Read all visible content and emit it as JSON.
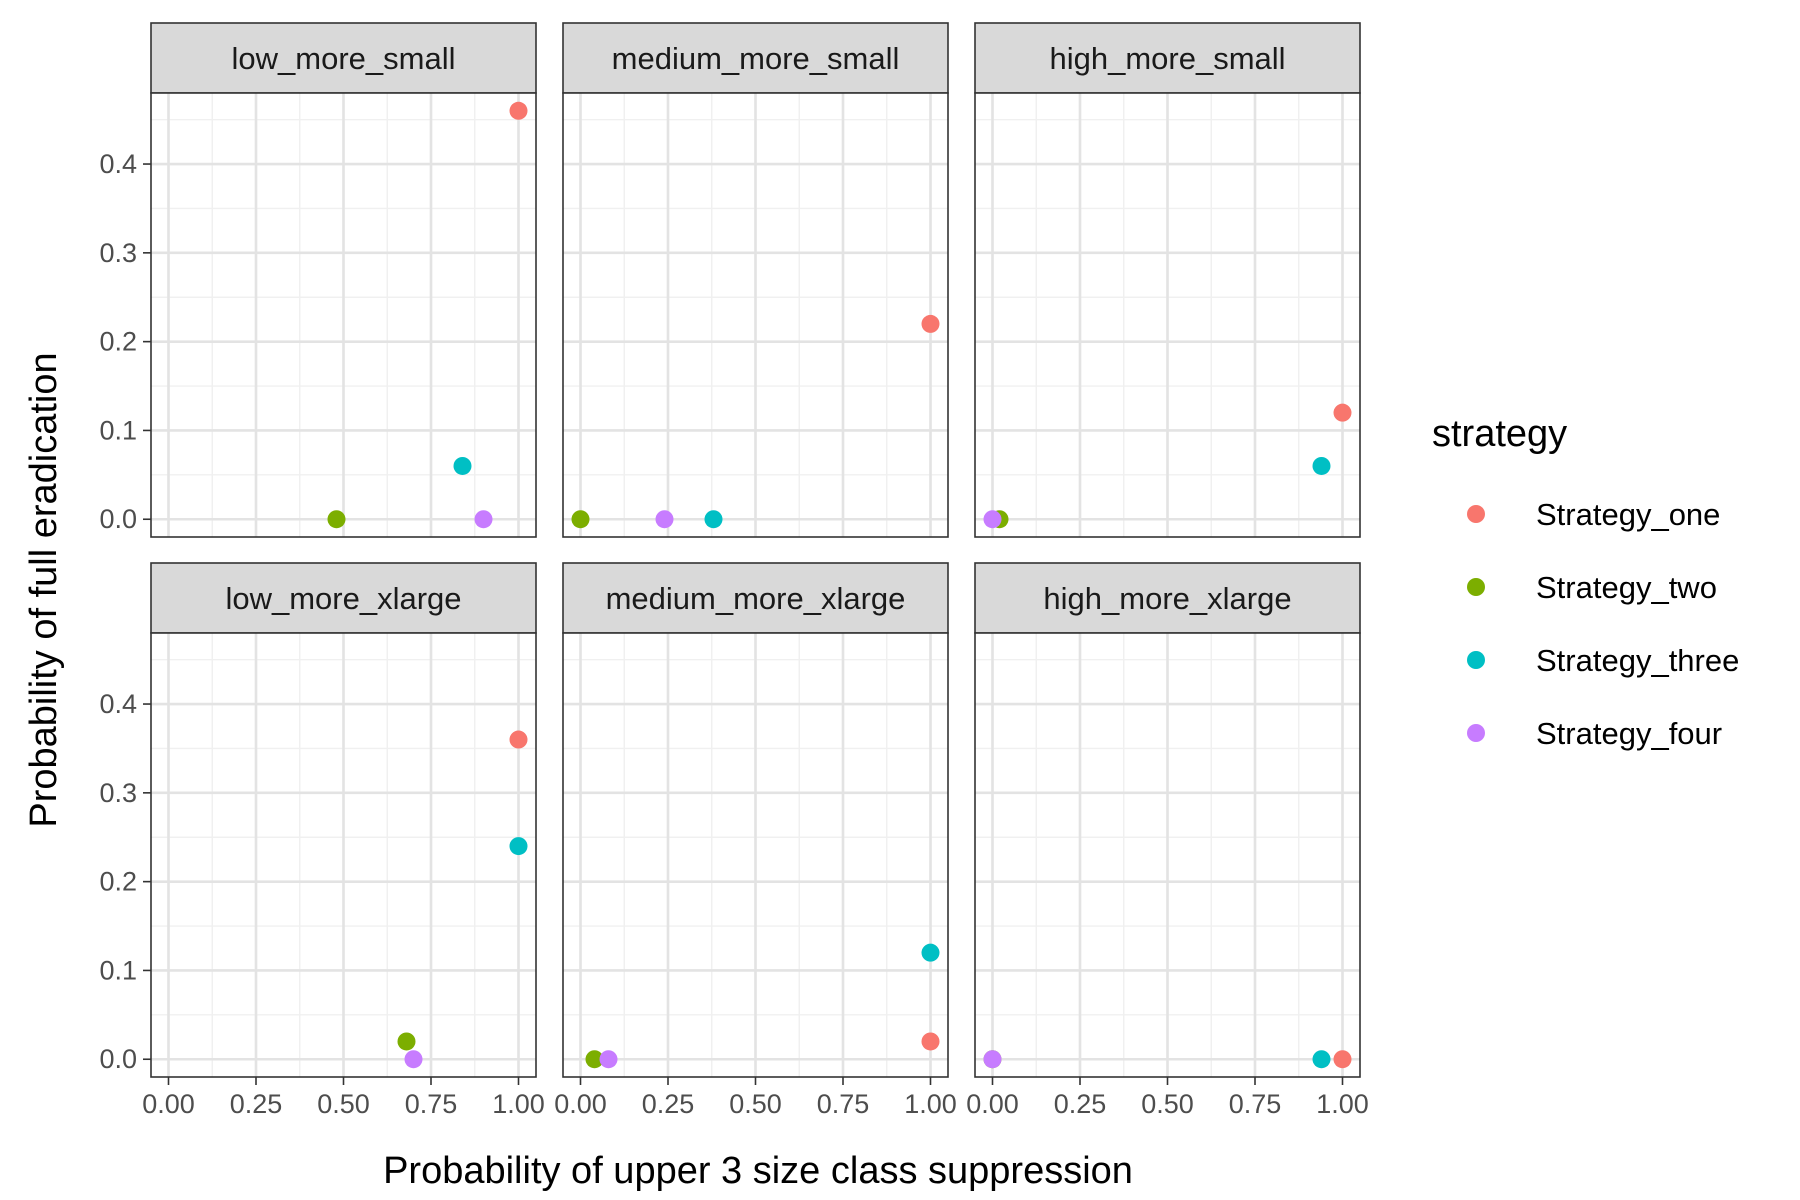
{
  "chart_data": {
    "type": "scatter",
    "xlabel": "Probability of upper 3 size class suppression",
    "ylabel": "Probability of full eradication",
    "xlim": [
      -0.05,
      1.05
    ],
    "ylim": [
      -0.02,
      0.48
    ],
    "x_ticks": [
      0,
      0.25,
      0.5,
      0.75,
      1
    ],
    "x_tick_labels": [
      "0.00",
      "0.25",
      "0.50",
      "0.75",
      "1.00"
    ],
    "y_ticks": [
      0,
      0.1,
      0.2,
      0.3,
      0.4
    ],
    "y_tick_labels": [
      "0.0",
      "0.1",
      "0.2",
      "0.3",
      "0.4"
    ],
    "grid": true,
    "legend": {
      "title": "strategy",
      "position": "right",
      "entries": [
        {
          "name": "Strategy_one",
          "color": "#F8766D"
        },
        {
          "name": "Strategy_two",
          "color": "#7CAE00"
        },
        {
          "name": "Strategy_three",
          "color": "#00BFC4"
        },
        {
          "name": "Strategy_four",
          "color": "#C77CFF"
        }
      ]
    },
    "panels": [
      {
        "title": "low_more_small",
        "points": [
          {
            "series": "Strategy_one",
            "x": 1.0,
            "y": 0.46
          },
          {
            "series": "Strategy_two",
            "x": 0.48,
            "y": 0.0
          },
          {
            "series": "Strategy_three",
            "x": 0.84,
            "y": 0.06
          },
          {
            "series": "Strategy_four",
            "x": 0.9,
            "y": 0.0
          }
        ]
      },
      {
        "title": "medium_more_small",
        "points": [
          {
            "series": "Strategy_one",
            "x": 1.0,
            "y": 0.22
          },
          {
            "series": "Strategy_two",
            "x": 0.0,
            "y": 0.0
          },
          {
            "series": "Strategy_three",
            "x": 0.38,
            "y": 0.0
          },
          {
            "series": "Strategy_four",
            "x": 0.24,
            "y": 0.0
          }
        ]
      },
      {
        "title": "high_more_small",
        "points": [
          {
            "series": "Strategy_one",
            "x": 1.0,
            "y": 0.12
          },
          {
            "series": "Strategy_two",
            "x": 0.02,
            "y": 0.0
          },
          {
            "series": "Strategy_three",
            "x": 0.94,
            "y": 0.06
          },
          {
            "series": "Strategy_four",
            "x": 0.0,
            "y": 0.0
          }
        ]
      },
      {
        "title": "low_more_xlarge",
        "points": [
          {
            "series": "Strategy_one",
            "x": 1.0,
            "y": 0.36
          },
          {
            "series": "Strategy_two",
            "x": 0.68,
            "y": 0.02
          },
          {
            "series": "Strategy_three",
            "x": 1.0,
            "y": 0.24
          },
          {
            "series": "Strategy_four",
            "x": 0.7,
            "y": 0.0
          }
        ]
      },
      {
        "title": "medium_more_xlarge",
        "points": [
          {
            "series": "Strategy_one",
            "x": 1.0,
            "y": 0.02
          },
          {
            "series": "Strategy_two",
            "x": 0.04,
            "y": 0.0
          },
          {
            "series": "Strategy_three",
            "x": 1.0,
            "y": 0.12
          },
          {
            "series": "Strategy_four",
            "x": 0.08,
            "y": 0.0
          }
        ]
      },
      {
        "title": "high_more_xlarge",
        "points": [
          {
            "series": "Strategy_one",
            "x": 1.0,
            "y": 0.0
          },
          {
            "series": "Strategy_two",
            "x": 0.0,
            "y": 0.0
          },
          {
            "series": "Strategy_three",
            "x": 0.94,
            "y": 0.0
          },
          {
            "series": "Strategy_four",
            "x": 0.0,
            "y": 0.0
          }
        ]
      }
    ]
  }
}
